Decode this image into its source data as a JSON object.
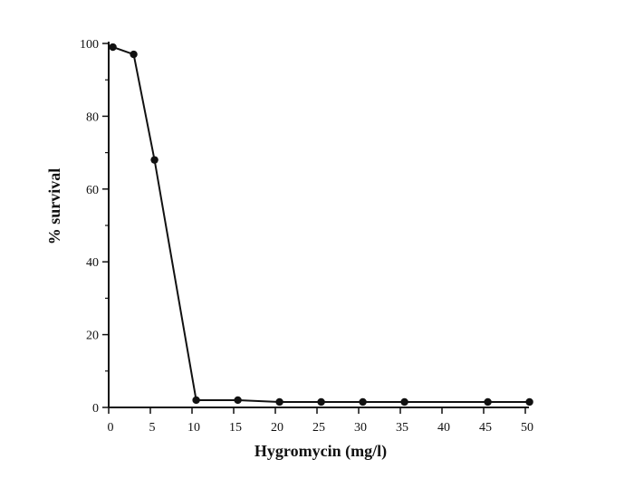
{
  "chart_data": {
    "type": "line",
    "title": "",
    "xlabel": "Hygromycin  (mg/l)",
    "ylabel": "% survival",
    "xlim": [
      0,
      50
    ],
    "ylim": [
      0,
      100
    ],
    "x_ticks": [
      0,
      5,
      10,
      15,
      20,
      25,
      30,
      35,
      40,
      45,
      50
    ],
    "y_ticks": [
      0,
      20,
      40,
      60,
      80,
      100
    ],
    "grid": false,
    "legend": "none",
    "series": [
      {
        "x": [
          0.5,
          3,
          5.5,
          10.5,
          15.5,
          20.5,
          25.5,
          30.5,
          35.5,
          45.5,
          50.5
        ],
        "y": [
          99,
          97,
          68,
          2,
          2,
          1.5,
          1.5,
          1.5,
          1.5,
          1.5,
          1.5
        ]
      }
    ],
    "colors": {
      "line": "#111111",
      "marker": "#111111",
      "axis": "#111111"
    }
  }
}
